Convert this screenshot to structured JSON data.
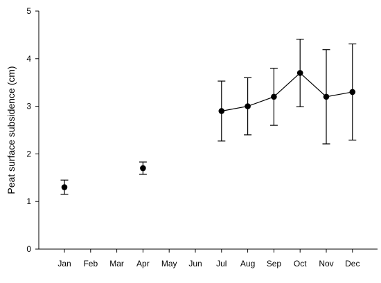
{
  "chart_data": {
    "type": "scatter",
    "title": "",
    "xlabel": "",
    "ylabel": "Peat surface subsidence (cm)",
    "categories": [
      "Jan",
      "Feb",
      "Mar",
      "Apr",
      "May",
      "Jun",
      "Jul",
      "Aug",
      "Sep",
      "Oct",
      "Nov",
      "Dec"
    ],
    "ylim": [
      0,
      5
    ],
    "yticks": [
      0,
      1,
      2,
      3,
      4,
      5
    ],
    "grid": false,
    "legend": "none",
    "series": [
      {
        "points": [
          {
            "x": "Jan",
            "y": 1.3,
            "err_low": 1.15,
            "err_high": 1.45
          },
          {
            "x": "Apr",
            "y": 1.7,
            "err_low": 1.57,
            "err_high": 1.83
          },
          {
            "x": "Jul",
            "y": 2.9,
            "err_low": 2.27,
            "err_high": 3.53
          },
          {
            "x": "Aug",
            "y": 3.0,
            "err_low": 2.4,
            "err_high": 3.6
          },
          {
            "x": "Sep",
            "y": 3.2,
            "err_low": 2.6,
            "err_high": 3.8
          },
          {
            "x": "Oct",
            "y": 3.7,
            "err_low": 2.99,
            "err_high": 4.41
          },
          {
            "x": "Nov",
            "y": 3.2,
            "err_low": 2.21,
            "err_high": 4.19
          },
          {
            "x": "Dec",
            "y": 3.3,
            "err_low": 2.29,
            "err_high": 4.31
          }
        ],
        "connected_segment": [
          "Jul",
          "Aug",
          "Sep",
          "Oct",
          "Nov",
          "Dec"
        ],
        "marker": "filled-circle",
        "color": "#000000"
      }
    ]
  }
}
